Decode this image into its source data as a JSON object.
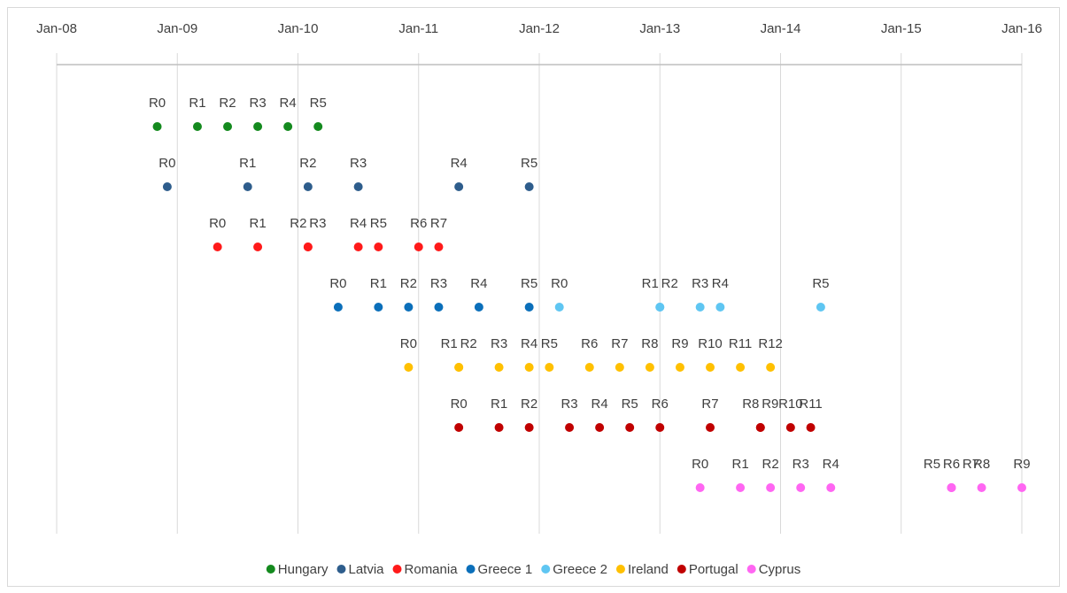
{
  "chart_data": {
    "type": "timeline",
    "xlim": [
      "2008-01",
      "2016-01"
    ],
    "xticks": [
      {
        "value": "2008-01",
        "label": "Jan-08"
      },
      {
        "value": "2009-01",
        "label": "Jan-09"
      },
      {
        "value": "2010-01",
        "label": "Jan-10"
      },
      {
        "value": "2011-01",
        "label": "Jan-11"
      },
      {
        "value": "2012-01",
        "label": "Jan-12"
      },
      {
        "value": "2013-01",
        "label": "Jan-13"
      },
      {
        "value": "2014-01",
        "label": "Jan-14"
      },
      {
        "value": "2015-01",
        "label": "Jan-15"
      },
      {
        "value": "2016-01",
        "label": "Jan-16"
      }
    ],
    "grid": true,
    "legend": "bottom",
    "series": [
      {
        "name": "Hungary",
        "color": "#148a1e",
        "x": [
          "2008-11",
          "2009-03",
          "2009-06",
          "2009-09",
          "2009-12",
          "2010-03"
        ],
        "labels": [
          "R0",
          "R1",
          "R2",
          "R3",
          "R4",
          "R5"
        ]
      },
      {
        "name": "Latvia",
        "color": "#2e5d8c",
        "x": [
          "2008-12",
          "2009-08",
          "2010-02",
          "2010-07",
          "2011-05",
          "2011-12"
        ],
        "labels": [
          "R0",
          "R1",
          "R2",
          "R3",
          "R4",
          "R5"
        ]
      },
      {
        "name": "Romania",
        "color": "#ff1a1a",
        "x": [
          "2009-05",
          "2009-09",
          "2010-02",
          "2010-02",
          "2010-07",
          "2010-09",
          "2011-01",
          "2011-03"
        ],
        "labels": [
          "R0",
          "R1",
          "R2",
          "R3",
          "R4",
          "R5",
          "R6",
          "R7"
        ]
      },
      {
        "name": "Greece 1",
        "color": "#0b6fba",
        "x": [
          "2010-05",
          "2010-09",
          "2010-12",
          "2011-03",
          "2011-07",
          "2011-12"
        ],
        "labels": [
          "R0",
          "R1",
          "R2",
          "R3",
          "R4",
          "R5"
        ]
      },
      {
        "name": "Greece 2",
        "color": "#5fc6f2",
        "x": [
          "2012-03",
          "2013-01",
          "2013-01",
          "2013-05",
          "2013-07",
          "2014-05"
        ],
        "labels": [
          "R0",
          "R1",
          "R2",
          "R3",
          "R4",
          "R5"
        ]
      },
      {
        "name": "Ireland",
        "color": "#ffc000",
        "x": [
          "2010-12",
          "2011-05",
          "2011-05",
          "2011-09",
          "2011-12",
          "2012-02",
          "2012-06",
          "2012-09",
          "2012-12",
          "2013-03",
          "2013-06",
          "2013-09",
          "2013-12"
        ],
        "labels": [
          "R0",
          "R1",
          "R2",
          "R3",
          "R4",
          "R5",
          "R6",
          "R7",
          "R8",
          "R9",
          "R10",
          "R11",
          "R12"
        ]
      },
      {
        "name": "Portugal",
        "color": "#c00000",
        "x": [
          "2011-05",
          "2011-09",
          "2011-12",
          "2012-04",
          "2012-07",
          "2012-10",
          "2013-01",
          "2013-06",
          "2013-11",
          "2013-11",
          "2014-02",
          "2014-04"
        ],
        "labels": [
          "R0",
          "R1",
          "R2",
          "R3",
          "R4",
          "R5",
          "R6",
          "R7",
          "R8",
          "R9",
          "R10",
          "R11"
        ]
      },
      {
        "name": "Cyprus",
        "color": "#ff66f2",
        "x": [
          "2013-05",
          "2013-09",
          "2013-12",
          "2014-03",
          "2014-06",
          "2015-06",
          "2015-06",
          "2015-06",
          "2015-09",
          "2016-01"
        ],
        "labels": [
          "R0",
          "R1",
          "R2",
          "R3",
          "R4",
          "R5",
          "R6",
          "R7",
          "R8",
          "R9"
        ]
      }
    ]
  }
}
